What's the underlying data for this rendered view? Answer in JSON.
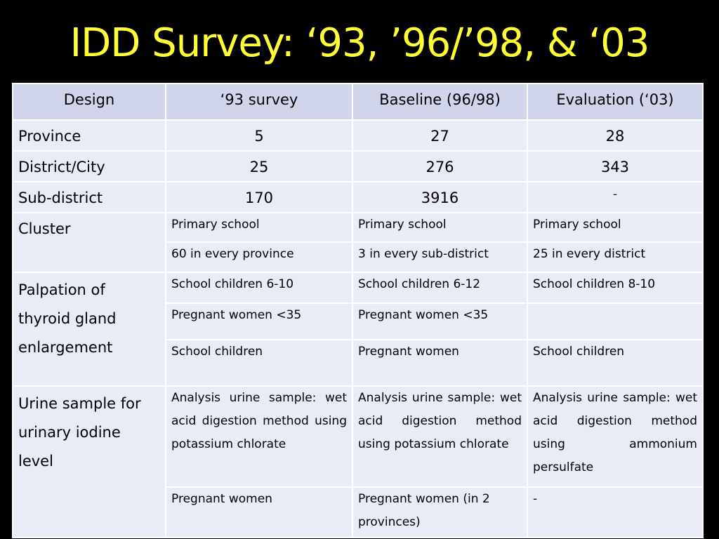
{
  "title": "IDD Survey: ‘93, ’96/’98, & ‘03",
  "columns": [
    "Design",
    "‘93 survey",
    "Baseline (96/98)",
    "Evaluation (‘03)"
  ],
  "rows": {
    "province": {
      "label": "Province",
      "v93": "5",
      "baseline": "27",
      "eval": "28"
    },
    "district": {
      "label": "District/City",
      "v93": "25",
      "baseline": "276",
      "eval": "343"
    },
    "subdistrict": {
      "label": "Sub-district",
      "v93": "170",
      "baseline": "3916",
      "eval": "-"
    },
    "cluster": {
      "label": "Cluster",
      "sub1": {
        "v93": "Primary school",
        "baseline": "Primary school",
        "eval": "Primary school"
      },
      "sub2": {
        "v93": "60 in every province",
        "baseline": "3 in every sub-district",
        "eval": "25 in every district"
      }
    },
    "palpation": {
      "label": "Palpation of thyroid gland enlargement",
      "sub1": {
        "v93": "School children 6-10",
        "baseline": "School children 6-12",
        "eval": "School children 8-10"
      },
      "sub2": {
        "v93": "Pregnant women <35",
        "baseline": "Pregnant women <35",
        "eval": ""
      },
      "sub3": {
        "v93": "School children",
        "baseline": "Pregnant women",
        "eval": "School children"
      }
    },
    "urine": {
      "label": "Urine sample for urinary iodine level",
      "sub1": {
        "v93": "Analysis urine sample: wet acid digestion method using potassium chlorate",
        "baseline": "Analysis urine sample: wet acid digestion method using potassium chlorate",
        "eval": "Analysis urine sample: wet acid digestion method using ammonium persulfate"
      },
      "sub2": {
        "v93": "Pregnant women",
        "baseline": "Pregnant women (in 2 provinces)",
        "eval": "-"
      }
    }
  },
  "colors": {
    "background": "#000000",
    "title": "#ffff33",
    "cell": "#e9ebf6",
    "header": "#d1d5ec",
    "border": "#ffffff"
  }
}
